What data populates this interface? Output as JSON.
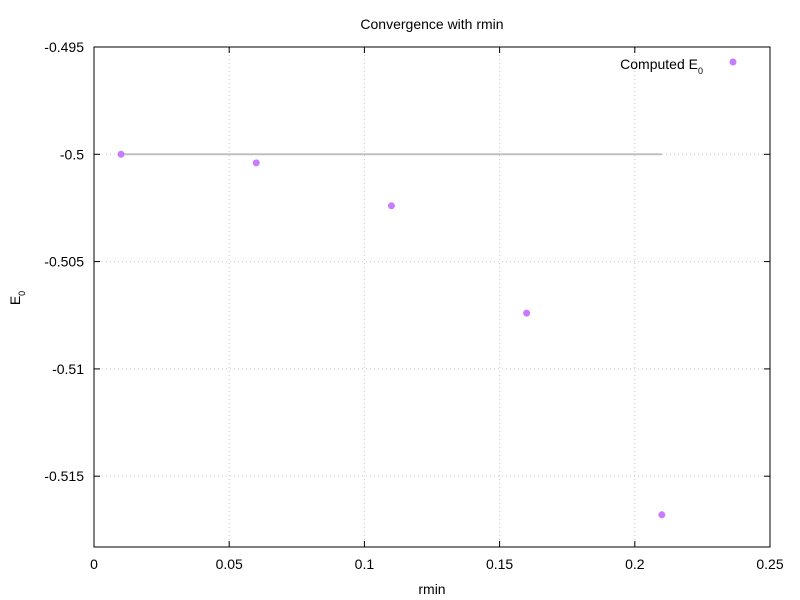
{
  "chart_data": {
    "type": "scatter",
    "title": "Convergence with rmin",
    "xlabel": "rmin",
    "ylabel_main": "E",
    "ylabel_sub": "0",
    "xlim": [
      0,
      0.25
    ],
    "ylim": [
      -0.5183,
      -0.495
    ],
    "x_ticks": [
      0,
      0.05,
      0.1,
      0.15,
      0.2,
      0.25
    ],
    "x_tick_labels": [
      "0",
      "0.05",
      "0.1",
      "0.15",
      "0.2",
      "0.25"
    ],
    "y_ticks": [
      -0.495,
      -0.5,
      -0.505,
      -0.51,
      -0.515
    ],
    "y_tick_labels": [
      "-0.495",
      "-0.5",
      "-0.505",
      "-0.51",
      "-0.515"
    ],
    "grid": true,
    "legend": {
      "position": "top-right"
    },
    "series": [
      {
        "name_main": "Computed E",
        "name_sub": "0",
        "color": "#c77cff",
        "x": [
          0.01,
          0.06,
          0.11,
          0.16,
          0.21
        ],
        "y": [
          -0.5,
          -0.5004,
          -0.5024,
          -0.5074,
          -0.5168
        ]
      }
    ],
    "reference_line": {
      "color": "#c0c0c0",
      "x": [
        0.01,
        0.21
      ],
      "y": [
        -0.5,
        -0.5
      ]
    }
  }
}
